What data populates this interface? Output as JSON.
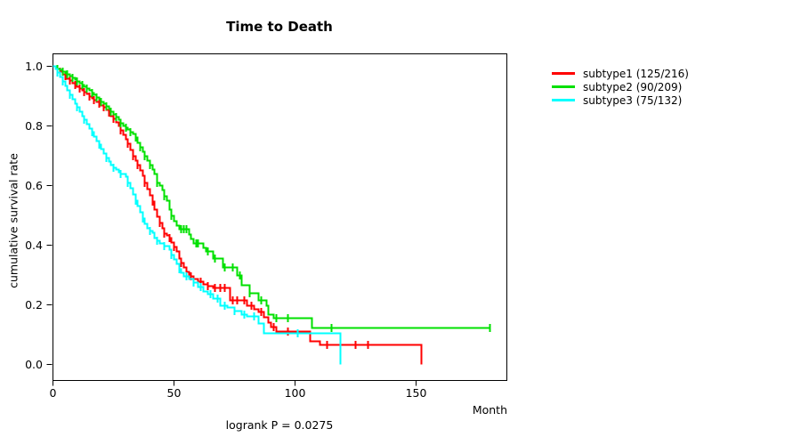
{
  "chart_data": {
    "type": "line",
    "subtype": "kaplan-meier-step",
    "title": "Time to Death",
    "xlabel": "Month",
    "ylabel": "cumulative survival rate",
    "annotation": "logrank P = 0.0275",
    "xlim": [
      0,
      187.5
    ],
    "ylim": [
      0,
      1.04
    ],
    "xticks": [
      0,
      50,
      100,
      150
    ],
    "yticks": [
      0.0,
      0.2,
      0.4,
      0.6,
      0.8,
      1.0
    ],
    "grid": false,
    "legend_position": "right-outside",
    "series": [
      {
        "name": "subtype1 (125/216)",
        "label": "subtype1",
        "events": 125,
        "n": 216,
        "color": "#ff0000",
        "points": [
          [
            0,
            1.0
          ],
          [
            1,
            0.995
          ],
          [
            2,
            0.99
          ],
          [
            3,
            0.982
          ],
          [
            4,
            0.974
          ],
          [
            5,
            0.966
          ],
          [
            6,
            0.958
          ],
          [
            7,
            0.951
          ],
          [
            8,
            0.944
          ],
          [
            9,
            0.938
          ],
          [
            10,
            0.932
          ],
          [
            11,
            0.926
          ],
          [
            12,
            0.92
          ],
          [
            13,
            0.913
          ],
          [
            14,
            0.906
          ],
          [
            15,
            0.9
          ],
          [
            16,
            0.894
          ],
          [
            17,
            0.888
          ],
          [
            18,
            0.882
          ],
          [
            19,
            0.876
          ],
          [
            20,
            0.87
          ],
          [
            21,
            0.862
          ],
          [
            22,
            0.853
          ],
          [
            23,
            0.844
          ],
          [
            24,
            0.834
          ],
          [
            25,
            0.824
          ],
          [
            26,
            0.812
          ],
          [
            27,
            0.8
          ],
          [
            28,
            0.785
          ],
          [
            29,
            0.77
          ],
          [
            30,
            0.755
          ],
          [
            31,
            0.74
          ],
          [
            32,
            0.72
          ],
          [
            33,
            0.7
          ],
          [
            34,
            0.684
          ],
          [
            35,
            0.668
          ],
          [
            36,
            0.65
          ],
          [
            37,
            0.632
          ],
          [
            38,
            0.61
          ],
          [
            39,
            0.588
          ],
          [
            40,
            0.566
          ],
          [
            41,
            0.545
          ],
          [
            42,
            0.52
          ],
          [
            43,
            0.497
          ],
          [
            44,
            0.475
          ],
          [
            45,
            0.458
          ],
          [
            46,
            0.44
          ],
          [
            47,
            0.432
          ],
          [
            48,
            0.424
          ],
          [
            49,
            0.41
          ],
          [
            50,
            0.394
          ],
          [
            51,
            0.378
          ],
          [
            52,
            0.355
          ],
          [
            53,
            0.34
          ],
          [
            54,
            0.325
          ],
          [
            55,
            0.31
          ],
          [
            56,
            0.296
          ],
          [
            58,
            0.288
          ],
          [
            60,
            0.278
          ],
          [
            62,
            0.268
          ],
          [
            64,
            0.262
          ],
          [
            66,
            0.256
          ],
          [
            73,
            0.215
          ],
          [
            80,
            0.197
          ],
          [
            83,
            0.186
          ],
          [
            85,
            0.176
          ],
          [
            87,
            0.158
          ],
          [
            89,
            0.14
          ],
          [
            90,
            0.125
          ],
          [
            92,
            0.11
          ],
          [
            106,
            0.078
          ],
          [
            110,
            0.065
          ],
          [
            152,
            0.0
          ]
        ],
        "censor_times": [
          3,
          5,
          7,
          9,
          11,
          13,
          15,
          17,
          19,
          21,
          23,
          25,
          28,
          31,
          33,
          35,
          38,
          41,
          44,
          46,
          48,
          50,
          53,
          57,
          61,
          64,
          67,
          69,
          71,
          74,
          76,
          79,
          82,
          86,
          91,
          97,
          113,
          125,
          130
        ]
      },
      {
        "name": "subtype2 (90/209)",
        "label": "subtype2",
        "events": 90,
        "n": 209,
        "color": "#00e000",
        "points": [
          [
            0,
            1.0
          ],
          [
            1,
            0.996
          ],
          [
            2,
            0.992
          ],
          [
            3,
            0.987
          ],
          [
            4,
            0.982
          ],
          [
            5,
            0.977
          ],
          [
            6,
            0.972
          ],
          [
            7,
            0.966
          ],
          [
            8,
            0.96
          ],
          [
            9,
            0.954
          ],
          [
            10,
            0.948
          ],
          [
            11,
            0.942
          ],
          [
            12,
            0.936
          ],
          [
            13,
            0.93
          ],
          [
            14,
            0.924
          ],
          [
            15,
            0.918
          ],
          [
            16,
            0.91
          ],
          [
            17,
            0.903
          ],
          [
            18,
            0.896
          ],
          [
            19,
            0.889
          ],
          [
            20,
            0.882
          ],
          [
            21,
            0.874
          ],
          [
            22,
            0.866
          ],
          [
            23,
            0.857
          ],
          [
            24,
            0.848
          ],
          [
            25,
            0.839
          ],
          [
            26,
            0.83
          ],
          [
            27,
            0.82
          ],
          [
            28,
            0.81
          ],
          [
            29,
            0.8
          ],
          [
            30,
            0.795
          ],
          [
            31,
            0.787
          ],
          [
            32,
            0.78
          ],
          [
            33,
            0.773
          ],
          [
            34,
            0.76
          ],
          [
            35,
            0.744
          ],
          [
            36,
            0.728
          ],
          [
            37,
            0.713
          ],
          [
            38,
            0.698
          ],
          [
            39,
            0.683
          ],
          [
            40,
            0.668
          ],
          [
            41,
            0.654
          ],
          [
            42,
            0.64
          ],
          [
            43,
            0.61
          ],
          [
            44,
            0.6
          ],
          [
            45,
            0.585
          ],
          [
            46,
            0.565
          ],
          [
            47,
            0.55
          ],
          [
            48,
            0.52
          ],
          [
            49,
            0.5
          ],
          [
            50,
            0.48
          ],
          [
            51,
            0.466
          ],
          [
            52,
            0.455
          ],
          [
            56,
            0.437
          ],
          [
            57,
            0.42
          ],
          [
            58,
            0.405
          ],
          [
            62,
            0.392
          ],
          [
            63,
            0.378
          ],
          [
            66,
            0.355
          ],
          [
            70,
            0.325
          ],
          [
            76,
            0.3
          ],
          [
            78,
            0.266
          ],
          [
            81,
            0.238
          ],
          [
            85,
            0.215
          ],
          [
            88,
            0.198
          ],
          [
            89,
            0.168
          ],
          [
            91,
            0.155
          ],
          [
            107,
            0.122
          ],
          [
            180.3,
            0.122
          ]
        ],
        "censor_times": [
          2,
          4,
          6,
          8,
          10,
          12,
          14,
          16,
          18,
          20,
          22,
          24,
          26,
          28,
          30,
          32,
          34,
          36,
          38,
          40,
          43,
          46,
          49,
          53,
          54,
          55,
          59,
          60,
          64,
          67,
          71,
          74,
          77,
          81,
          86,
          92,
          97,
          115,
          180.3
        ]
      },
      {
        "name": "subtype3 (75/132)",
        "label": "subtype3",
        "events": 75,
        "n": 132,
        "color": "#00ffff",
        "points": [
          [
            0,
            1.0
          ],
          [
            1,
            0.99
          ],
          [
            2,
            0.978
          ],
          [
            3,
            0.963
          ],
          [
            4,
            0.949
          ],
          [
            5,
            0.935
          ],
          [
            6,
            0.92
          ],
          [
            7,
            0.905
          ],
          [
            8,
            0.89
          ],
          [
            9,
            0.876
          ],
          [
            10,
            0.862
          ],
          [
            11,
            0.848
          ],
          [
            12,
            0.834
          ],
          [
            13,
            0.82
          ],
          [
            14,
            0.806
          ],
          [
            15,
            0.792
          ],
          [
            16,
            0.778
          ],
          [
            17,
            0.764
          ],
          [
            18,
            0.75
          ],
          [
            19,
            0.736
          ],
          [
            20,
            0.722
          ],
          [
            21,
            0.708
          ],
          [
            22,
            0.694
          ],
          [
            23,
            0.68
          ],
          [
            24,
            0.67
          ],
          [
            25,
            0.661
          ],
          [
            26,
            0.653
          ],
          [
            27,
            0.646
          ],
          [
            28,
            0.64
          ],
          [
            30,
            0.63
          ],
          [
            31,
            0.61
          ],
          [
            32,
            0.59
          ],
          [
            33,
            0.57
          ],
          [
            34,
            0.55
          ],
          [
            35,
            0.53
          ],
          [
            36,
            0.51
          ],
          [
            37,
            0.49
          ],
          [
            38,
            0.473
          ],
          [
            39,
            0.458
          ],
          [
            40,
            0.449
          ],
          [
            41,
            0.442
          ],
          [
            42,
            0.425
          ],
          [
            43,
            0.415
          ],
          [
            44,
            0.406
          ],
          [
            46,
            0.396
          ],
          [
            48,
            0.385
          ],
          [
            49,
            0.368
          ],
          [
            50,
            0.352
          ],
          [
            51,
            0.336
          ],
          [
            52,
            0.32
          ],
          [
            53,
            0.308
          ],
          [
            54,
            0.296
          ],
          [
            56,
            0.288
          ],
          [
            58,
            0.275
          ],
          [
            60,
            0.26
          ],
          [
            62,
            0.245
          ],
          [
            64,
            0.236
          ],
          [
            66,
            0.22
          ],
          [
            69,
            0.197
          ],
          [
            72,
            0.19
          ],
          [
            75,
            0.18
          ],
          [
            78,
            0.168
          ],
          [
            80,
            0.161
          ],
          [
            85,
            0.137
          ],
          [
            87,
            0.104
          ],
          [
            118.5,
            0.0
          ]
        ],
        "censor_times": [
          2,
          4,
          7,
          10,
          13,
          16,
          19,
          22,
          25,
          28,
          31,
          34,
          37,
          40,
          43,
          46,
          49,
          52,
          55,
          58,
          61,
          65,
          68,
          71,
          75,
          79,
          83,
          101
        ]
      }
    ]
  }
}
